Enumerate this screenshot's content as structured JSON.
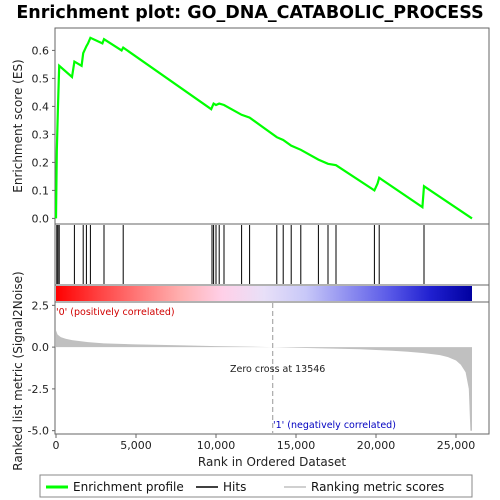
{
  "chart_data": {
    "title": "Enrichment plot: GO_DNA_CATABOLIC_PROCESS",
    "type": "line",
    "x_range": [
      0,
      26000
    ],
    "top_panel": {
      "ylabel": "Enrichment score (ES)",
      "ylim": [
        -0.02,
        0.68
      ],
      "y_ticks": [
        0.0,
        0.1,
        0.2,
        0.3,
        0.4,
        0.5,
        0.6
      ],
      "y_tick_labels": [
        "0.0",
        "0.1",
        "0.2",
        "0.3",
        "0.4",
        "0.5",
        "0.6"
      ],
      "series": [
        {
          "name": "Enrichment profile",
          "color": "#00ff00",
          "x": [
            0,
            50,
            120,
            200,
            1000,
            1150,
            1600,
            1700,
            1900,
            2000,
            2150,
            2900,
            3000,
            4100,
            4200,
            9700,
            9850,
            10000,
            10200,
            10500,
            11600,
            12100,
            13800,
            14200,
            14700,
            15300,
            16400,
            17000,
            17500,
            19900,
            20100,
            20200,
            22900,
            23000,
            26000
          ],
          "y": [
            0.0,
            0.24,
            0.39,
            0.545,
            0.505,
            0.56,
            0.545,
            0.59,
            0.615,
            0.625,
            0.645,
            0.625,
            0.64,
            0.6,
            0.61,
            0.39,
            0.41,
            0.405,
            0.41,
            0.405,
            0.37,
            0.36,
            0.29,
            0.28,
            0.26,
            0.245,
            0.21,
            0.195,
            0.19,
            0.1,
            0.125,
            0.145,
            0.04,
            0.115,
            0.0
          ]
        }
      ]
    },
    "hits": [
      50,
      120,
      200,
      1150,
      1700,
      1900,
      2150,
      3000,
      4200,
      9750,
      9850,
      10000,
      10200,
      10500,
      11600,
      12100,
      13800,
      14200,
      14700,
      15300,
      16400,
      17000,
      17500,
      19900,
      20200,
      23000
    ],
    "color_bar": {
      "colors": [
        "#ff0000",
        "#ff4040",
        "#ff7a7a",
        "#ffb0b0",
        "#ffd0e8",
        "#e8e0f8",
        "#c8c8f8",
        "#9090f0",
        "#5a5ae8",
        "#2020d0",
        "#0000a0"
      ]
    },
    "bottom_panel": {
      "ylabel": "Ranked list metric (Signal2Noise)",
      "xlabel": "Rank in Ordered Dataset",
      "ylim": [
        -5.2,
        2.7
      ],
      "y_ticks": [
        2.5,
        0.0,
        -2.5,
        -5.0
      ],
      "y_tick_labels": [
        "2.5",
        "0.0",
        "-2.5",
        "-5.0"
      ],
      "x_ticks": [
        0,
        5000,
        10000,
        15000,
        20000,
        25000
      ],
      "x_tick_labels": [
        "0",
        "5,000",
        "10,000",
        "15,000",
        "20,000",
        "25,000"
      ],
      "metric_x": [
        0,
        100,
        300,
        600,
        1000,
        2000,
        3000,
        5000,
        8000,
        10000,
        12000,
        13546,
        15000,
        17000,
        19000,
        20000,
        21000,
        22000,
        23000,
        24000,
        24500,
        25000,
        25300,
        25600,
        25800,
        25900,
        26000
      ],
      "metric_y": [
        1.0,
        0.75,
        0.6,
        0.5,
        0.42,
        0.3,
        0.22,
        0.16,
        0.1,
        0.06,
        0.03,
        0.0,
        -0.04,
        -0.08,
        -0.13,
        -0.17,
        -0.22,
        -0.28,
        -0.36,
        -0.48,
        -0.6,
        -0.8,
        -1.05,
        -1.5,
        -2.5,
        -5.0,
        -5.0
      ],
      "zero_cross_x": 13546,
      "annotations": {
        "zero_cross": "Zero cross at 13546",
        "positive": "'0' (positively correlated)",
        "negative": "'1' (negatively correlated)"
      }
    },
    "legend": [
      {
        "label": "Enrichment profile",
        "color": "#00ff00"
      },
      {
        "label": "Hits",
        "color": "#000000"
      },
      {
        "label": "Ranking metric scores",
        "color": "#c0c0c0"
      }
    ]
  }
}
